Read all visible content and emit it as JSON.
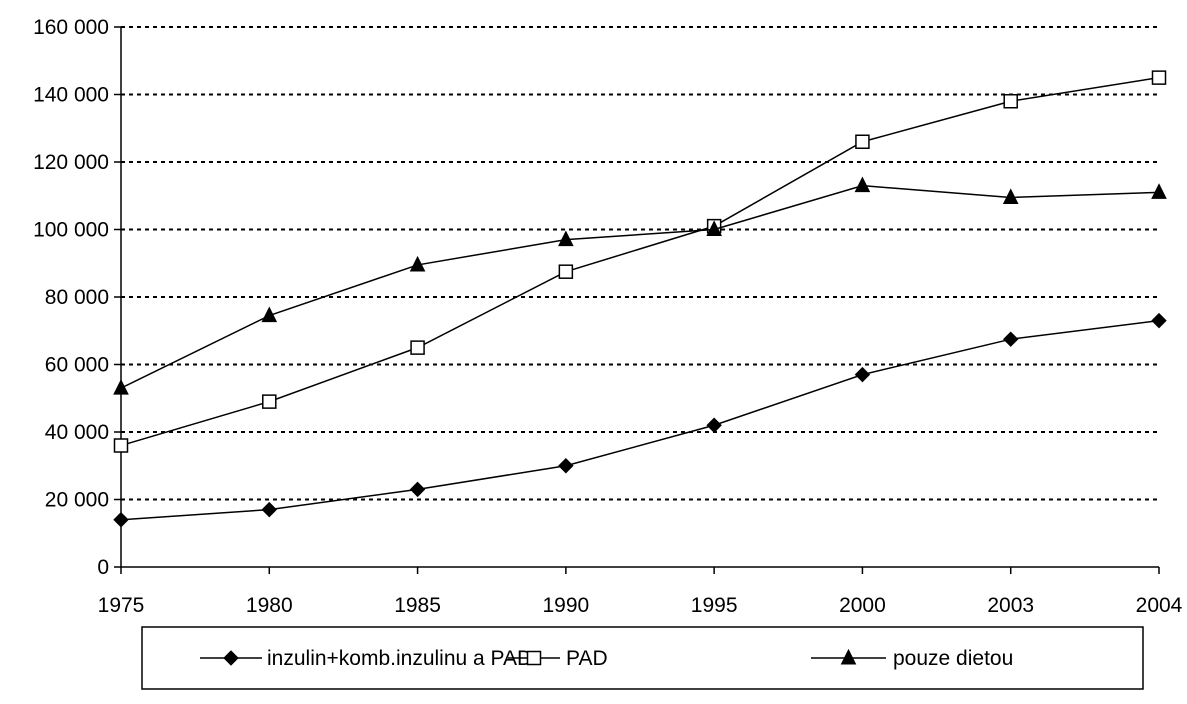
{
  "chart_data": {
    "type": "line",
    "title": "",
    "xlabel": "",
    "ylabel": "",
    "categories": [
      "1975",
      "1980",
      "1985",
      "1990",
      "1995",
      "2000",
      "2003",
      "2004"
    ],
    "ylim": [
      0,
      160000
    ],
    "yticks": [
      0,
      20000,
      40000,
      60000,
      80000,
      100000,
      120000,
      140000,
      160000
    ],
    "ytick_labels": [
      "0",
      "20 000",
      "40 000",
      "60 000",
      "80 000",
      "100 000",
      "120 000",
      "140 000",
      "160 000"
    ],
    "grid": "horizontal-dotted",
    "legend_position": "bottom",
    "series": [
      {
        "name": "inzulin+komb.inzulinu a PAD",
        "marker": "diamond-filled",
        "color": "#000000",
        "values": [
          14000,
          17000,
          23000,
          30000,
          42000,
          57000,
          67500,
          73000
        ]
      },
      {
        "name": "PAD",
        "marker": "square-open",
        "color": "#000000",
        "values": [
          36000,
          49000,
          65000,
          87500,
          101000,
          126000,
          138000,
          145000
        ]
      },
      {
        "name": "pouze dietou",
        "marker": "triangle-filled",
        "color": "#000000",
        "values": [
          53000,
          74500,
          89500,
          97000,
          100000,
          113000,
          109500,
          111000
        ]
      }
    ]
  }
}
